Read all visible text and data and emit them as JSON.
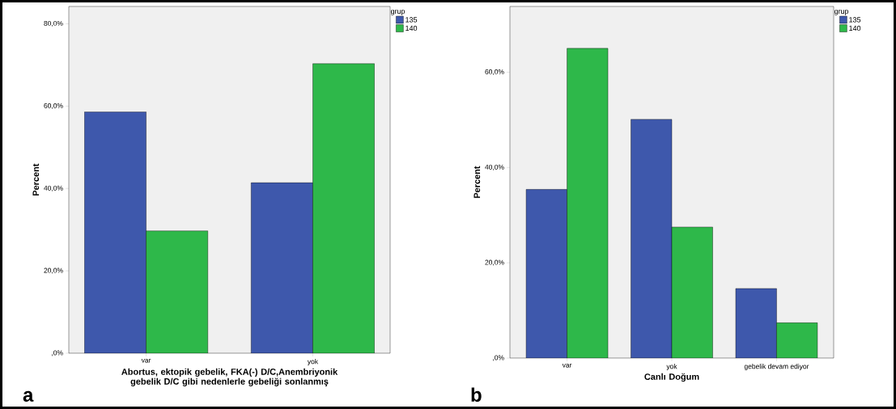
{
  "chart_data": [
    {
      "type": "bar",
      "categories": [
        "var",
        "yok"
      ],
      "xlabel": "Abortus, ektopik gebelik, FKA(-) D/C,Anembriyonik gebelik D/C gibi nedenlerle gebeliği sonlanmış",
      "ylabel": "Percent",
      "legend_title": "grup",
      "legend": "top right",
      "series": [
        {
          "name": "135",
          "color": "#3e58ac",
          "values": [
            58.6,
            41.4
          ]
        },
        {
          "name": "140",
          "color": "#2eb84a",
          "values": [
            29.7,
            70.3
          ]
        }
      ],
      "ylim": [
        0,
        84.2
      ],
      "yticks": [
        {
          "value": 0,
          "label": ",0%"
        },
        {
          "value": 20,
          "label": "20,0%"
        },
        {
          "value": 40,
          "label": "40,0%"
        },
        {
          "value": 60,
          "label": "60,0%"
        },
        {
          "value": 80,
          "label": "80,0%"
        }
      ],
      "annotations": [
        "a"
      ]
    },
    {
      "type": "bar",
      "categories": [
        "var",
        "yok",
        "gebelik devam ediyor"
      ],
      "xlabel": "Canlı Doğum",
      "ylabel": "Percent",
      "legend_title": "grup",
      "legend": "top right",
      "series": [
        {
          "name": "135",
          "color": "#3e58ac",
          "values": [
            35.4,
            50.1,
            14.6
          ]
        },
        {
          "name": "140",
          "color": "#2eb84a",
          "values": [
            65.0,
            27.5,
            7.4
          ]
        }
      ],
      "ylim": [
        0,
        73.8
      ],
      "yticks": [
        {
          "value": 0,
          "label": ",0%"
        },
        {
          "value": 20,
          "label": "20,0%"
        },
        {
          "value": 40,
          "label": "40,0%"
        },
        {
          "value": 60,
          "label": "60,0%"
        }
      ],
      "annotations": [
        "b"
      ]
    }
  ]
}
